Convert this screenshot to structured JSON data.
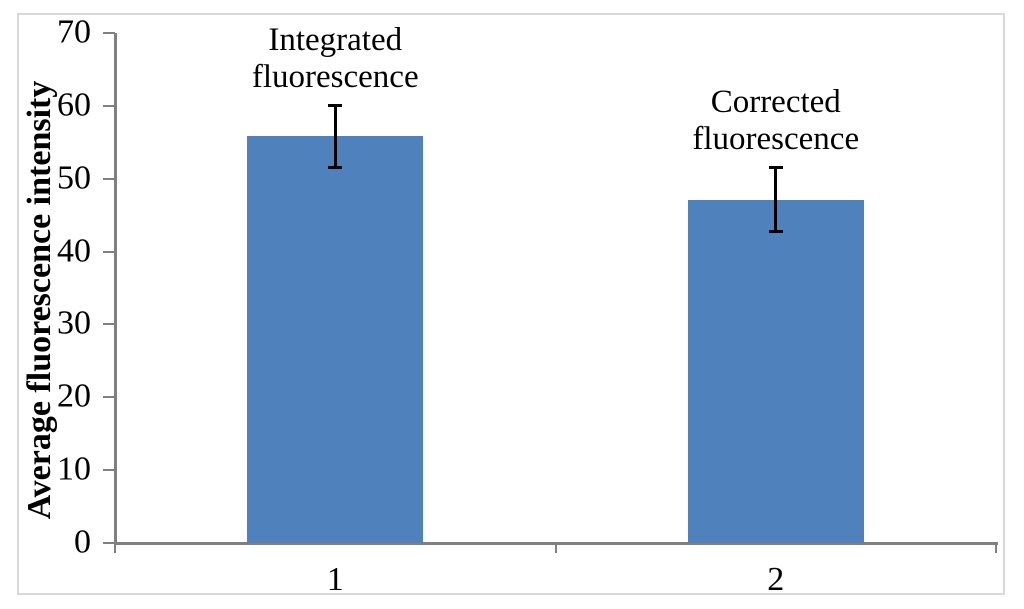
{
  "figure": {
    "background_color": "#ffffff",
    "frame_color": "#d9d9d9"
  },
  "chart_data": {
    "type": "bar",
    "title": "",
    "xlabel": "",
    "ylabel": "Average fluorescence intensity",
    "categories": [
      "1",
      "2"
    ],
    "series": [
      {
        "name": "Average fluorescence intensity",
        "values": [
          55.8,
          47.1
        ],
        "errors": [
          4.2,
          4.4
        ],
        "color": "#4f81bd"
      }
    ],
    "annotations": [
      {
        "category_index": 0,
        "lines": [
          "Integrated",
          "fluorescence"
        ]
      },
      {
        "category_index": 1,
        "lines": [
          "Corrected",
          "fluorescence"
        ]
      }
    ],
    "ylim": [
      0,
      70
    ],
    "yticks": [
      0,
      10,
      20,
      30,
      40,
      50,
      60,
      70
    ],
    "grid": false,
    "legend": "none",
    "axis_color": "#808080",
    "error_bar_color": "#000000",
    "text_color": "#000000"
  }
}
